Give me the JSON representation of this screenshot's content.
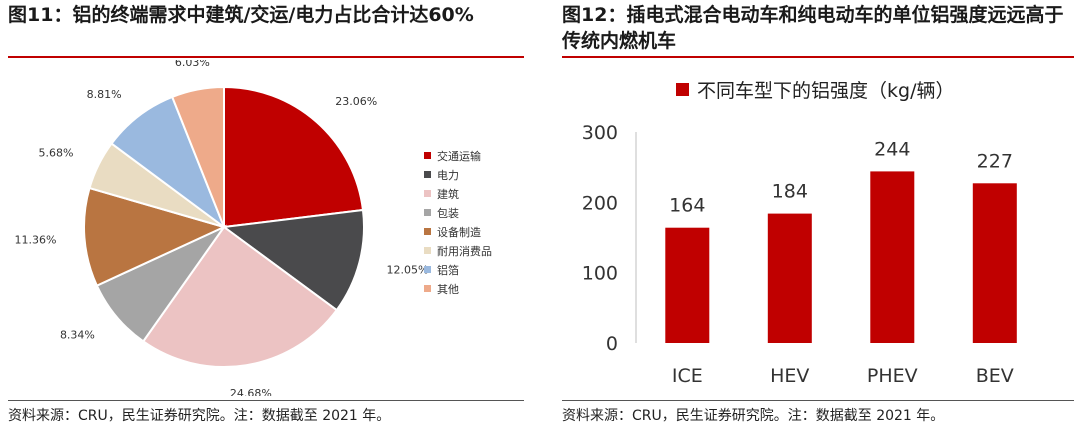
{
  "left": {
    "title": "图11：铝的终端需求中建筑/交运/电力占比合计达60%",
    "source": "资料来源：CRU，民生证券研究院。注：数据截至 2021 年。",
    "chart_data": {
      "type": "pie",
      "categories": [
        "交通运输",
        "电力",
        "建筑",
        "包装",
        "设备制造",
        "耐用消费品",
        "铝箔",
        "其他"
      ],
      "values": [
        23.06,
        12.05,
        24.68,
        8.34,
        11.36,
        5.68,
        8.81,
        6.03
      ],
      "labels": [
        "23.06%",
        "12.05%",
        "24.68%",
        "8.34%",
        "11.36%",
        "5.68%",
        "8.81%",
        "6.03%"
      ],
      "colors": [
        "#c00000",
        "#4a4a4c",
        "#ecc3c3",
        "#a5a5a5",
        "#b97541",
        "#e9dcc2",
        "#9ab9df",
        "#eeaa8a"
      ],
      "legend_position": "right"
    }
  },
  "right": {
    "title": "图12：插电式混合电动车和纯电动车的单位铝强度远远高于传统内燃机车",
    "source": "资料来源：CRU，民生证券研究院。注：数据截至 2021 年。",
    "chart_data": {
      "type": "bar",
      "categories": [
        "ICE",
        "HEV",
        "PHEV",
        "BEV"
      ],
      "series": [
        {
          "name": "不同车型下的铝强度（kg/辆）",
          "values": [
            164,
            184,
            244,
            227
          ]
        }
      ],
      "ylim": [
        0,
        300
      ],
      "yticks": [
        "0",
        "100",
        "200",
        "300"
      ],
      "bar_color": "#c00000",
      "grid": false,
      "legend_position": "top"
    }
  }
}
